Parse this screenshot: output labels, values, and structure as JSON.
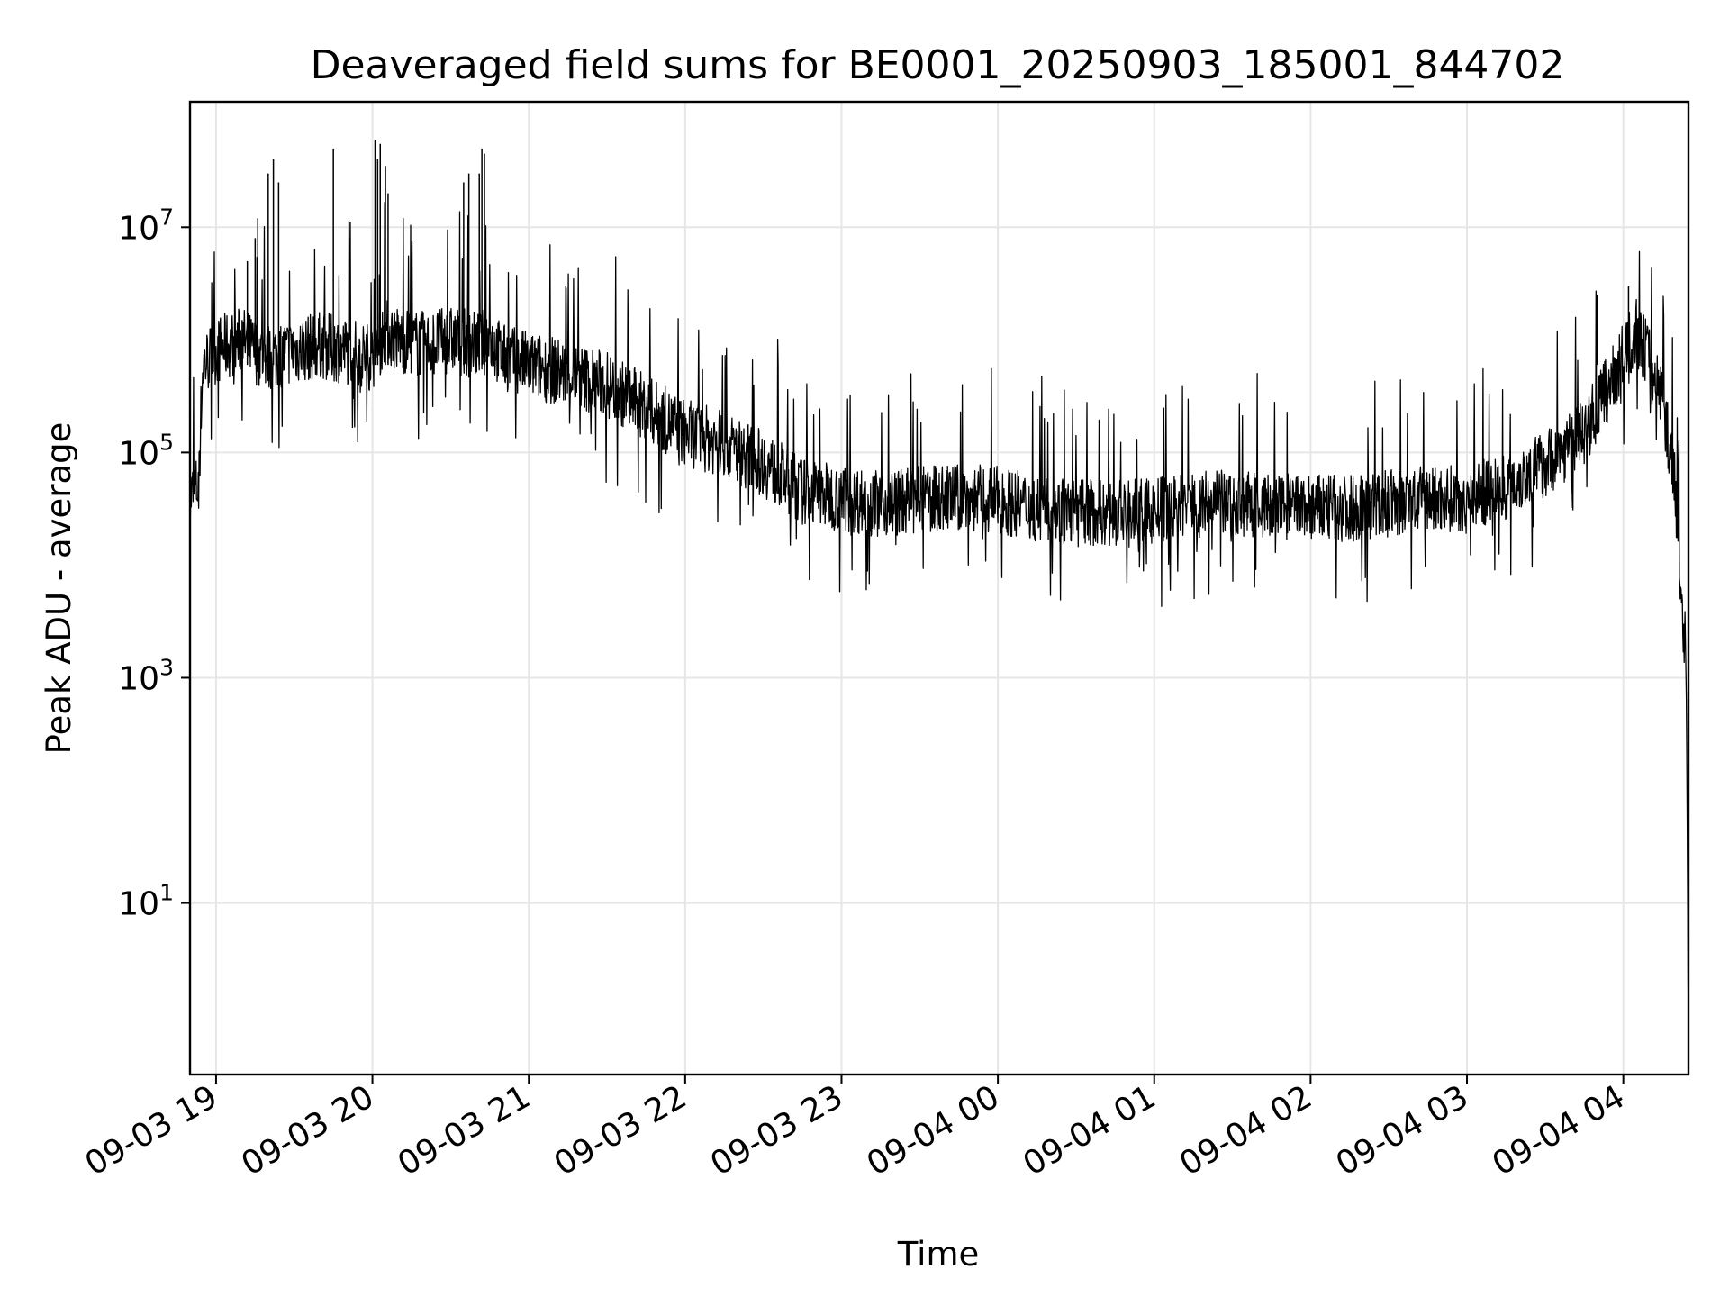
{
  "chart_data": {
    "type": "line",
    "title": "Deaveraged field sums for BE0001_20250903_185001_844702",
    "xlabel": "Time",
    "ylabel": "Peak ADU - average",
    "y_scale": "log",
    "ylim": [
      0.3,
      130000000
    ],
    "xlim": [
      "2025-09-03 18:50",
      "2025-09-04 04:25"
    ],
    "grid": true,
    "line_color": "#000000",
    "grid_color": "#e6e6e6",
    "x_ticks": [
      {
        "label": "09-03 19",
        "value": "2025-09-03 19:00"
      },
      {
        "label": "09-03 20",
        "value": "2025-09-03 20:00"
      },
      {
        "label": "09-03 21",
        "value": "2025-09-03 21:00"
      },
      {
        "label": "09-03 22",
        "value": "2025-09-03 22:00"
      },
      {
        "label": "09-03 23",
        "value": "2025-09-03 23:00"
      },
      {
        "label": "09-04 00",
        "value": "2025-09-04 00:00"
      },
      {
        "label": "09-04 01",
        "value": "2025-09-04 01:00"
      },
      {
        "label": "09-04 02",
        "value": "2025-09-04 02:00"
      },
      {
        "label": "09-04 03",
        "value": "2025-09-04 03:00"
      },
      {
        "label": "09-04 04",
        "value": "2025-09-04 04:00"
      }
    ],
    "y_ticks": [
      {
        "base": "10",
        "exp": "1",
        "value": 10
      },
      {
        "base": "10",
        "exp": "3",
        "value": 1000
      },
      {
        "base": "10",
        "exp": "5",
        "value": 100000
      },
      {
        "base": "10",
        "exp": "7",
        "value": 10000000
      }
    ],
    "series": [
      {
        "x": [
          "2025-09-03 18:50",
          "2025-09-03 18:53",
          "2025-09-03 18:55",
          "2025-09-03 19:00",
          "2025-09-03 19:05",
          "2025-09-03 19:10",
          "2025-09-03 19:15",
          "2025-09-03 19:20",
          "2025-09-03 19:30",
          "2025-09-03 19:40",
          "2025-09-03 19:50",
          "2025-09-03 20:00",
          "2025-09-03 20:05",
          "2025-09-03 20:10",
          "2025-09-03 20:20",
          "2025-09-03 20:30",
          "2025-09-03 20:40",
          "2025-09-03 20:45",
          "2025-09-03 20:50",
          "2025-09-03 21:00",
          "2025-09-03 21:15",
          "2025-09-03 21:30",
          "2025-09-03 21:45",
          "2025-09-03 22:00",
          "2025-09-03 22:15",
          "2025-09-03 22:30",
          "2025-09-03 22:45",
          "2025-09-03 23:00",
          "2025-09-03 23:15",
          "2025-09-03 23:30",
          "2025-09-03 23:45",
          "2025-09-04 00:00",
          "2025-09-04 00:15",
          "2025-09-04 00:30",
          "2025-09-04 00:45",
          "2025-09-04 01:00",
          "2025-09-04 01:15",
          "2025-09-04 01:30",
          "2025-09-04 01:45",
          "2025-09-04 02:00",
          "2025-09-04 02:15",
          "2025-09-04 02:30",
          "2025-09-04 02:45",
          "2025-09-04 03:00",
          "2025-09-04 03:15",
          "2025-09-04 03:30",
          "2025-09-04 03:45",
          "2025-09-04 03:55",
          "2025-09-04 04:00",
          "2025-09-04 04:05",
          "2025-09-04 04:10",
          "2025-09-04 04:15",
          "2025-09-04 04:20",
          "2025-09-04 04:22",
          "2025-09-04 04:24",
          "2025-09-04 04:25"
        ],
        "y": [
          40000,
          50000,
          600000,
          800000,
          900000,
          1000000,
          800000,
          700000,
          800000,
          900000,
          800000,
          700000,
          1200000,
          1000000,
          900000,
          1000000,
          900000,
          1000000,
          700000,
          600000,
          500000,
          400000,
          250000,
          150000,
          120000,
          80000,
          45000,
          40000,
          35000,
          38000,
          40000,
          38000,
          32000,
          30000,
          28000,
          30000,
          35000,
          35000,
          33000,
          32000,
          32000,
          35000,
          38000,
          40000,
          50000,
          80000,
          150000,
          400000,
          700000,
          1200000,
          700000,
          300000,
          50000,
          5000,
          2000,
          1
        ]
      }
    ],
    "spikes": [
      {
        "x": "2025-09-03 19:10",
        "y": 1500000
      },
      {
        "x": "2025-09-03 19:12",
        "y": 5000000
      },
      {
        "x": "2025-09-03 19:15",
        "y": 8000000
      },
      {
        "x": "2025-09-03 19:16",
        "y": 12000000
      },
      {
        "x": "2025-09-03 19:20",
        "y": 30000000
      },
      {
        "x": "2025-09-03 19:22",
        "y": 40000000
      },
      {
        "x": "2025-09-03 19:24",
        "y": 25000000
      },
      {
        "x": "2025-09-03 19:45",
        "y": 50000000
      },
      {
        "x": "2025-09-03 20:01",
        "y": 60000000
      },
      {
        "x": "2025-09-03 20:02",
        "y": 40000000
      },
      {
        "x": "2025-09-03 20:03",
        "y": 55000000
      },
      {
        "x": "2025-09-03 20:05",
        "y": 35000000
      },
      {
        "x": "2025-09-03 20:06",
        "y": 20000000
      },
      {
        "x": "2025-09-03 20:35",
        "y": 25000000
      },
      {
        "x": "2025-09-03 20:37",
        "y": 30000000
      },
      {
        "x": "2025-09-03 20:41",
        "y": 30000000
      },
      {
        "x": "2025-09-03 20:42",
        "y": 50000000
      },
      {
        "x": "2025-09-03 20:43",
        "y": 45000000
      },
      {
        "x": "2025-09-04 03:50",
        "y": 2500000
      },
      {
        "x": "2025-09-04 04:02",
        "y": 3000000
      }
    ]
  }
}
